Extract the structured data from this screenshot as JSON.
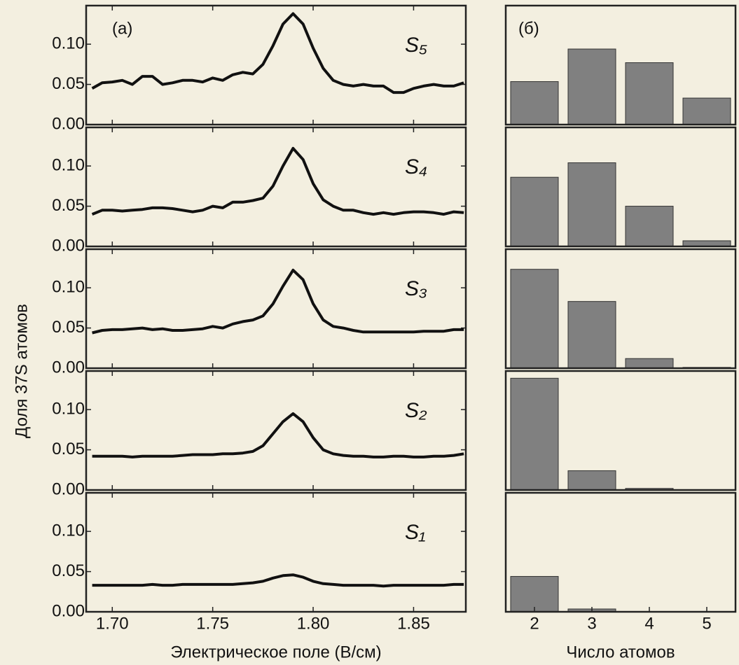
{
  "chart_data": [
    {
      "type": "line",
      "annotation": "(а)",
      "xlabel": "Электрическое поле (В/см)",
      "ylabel": "Доля 37S атомов",
      "x": [
        1.69,
        1.695,
        1.7,
        1.705,
        1.71,
        1.715,
        1.72,
        1.725,
        1.73,
        1.735,
        1.74,
        1.745,
        1.75,
        1.755,
        1.76,
        1.765,
        1.77,
        1.775,
        1.78,
        1.785,
        1.79,
        1.795,
        1.8,
        1.805,
        1.81,
        1.815,
        1.82,
        1.825,
        1.83,
        1.835,
        1.84,
        1.845,
        1.85,
        1.855,
        1.86,
        1.865,
        1.87,
        1.875
      ],
      "xlim": [
        1.687,
        1.876
      ],
      "xticks": [
        {
          "value": 1.7,
          "label": "1.70"
        },
        1.75,
        {
          "value": 1.8,
          "label": "1.80"
        },
        1.85
      ],
      "ylim": [
        0,
        0.148
      ],
      "yticks": [
        {
          "value": 0,
          "label": "0.00"
        },
        0.05,
        {
          "value": 0.1,
          "label": "0.10"
        }
      ],
      "color": "#111111",
      "series": [
        {
          "name": "S₅",
          "values": [
            0.045,
            0.052,
            0.053,
            0.055,
            0.05,
            0.06,
            0.06,
            0.05,
            0.052,
            0.055,
            0.055,
            0.053,
            0.058,
            0.055,
            0.062,
            0.065,
            0.063,
            0.075,
            0.098,
            0.125,
            0.138,
            0.125,
            0.095,
            0.07,
            0.055,
            0.05,
            0.048,
            0.05,
            0.048,
            0.048,
            0.04,
            0.04,
            0.045,
            0.048,
            0.05,
            0.048,
            0.048,
            0.052
          ]
        },
        {
          "name": "S₄",
          "values": [
            0.04,
            0.045,
            0.045,
            0.044,
            0.045,
            0.046,
            0.048,
            0.048,
            0.047,
            0.045,
            0.043,
            0.045,
            0.05,
            0.048,
            0.055,
            0.055,
            0.057,
            0.06,
            0.075,
            0.1,
            0.122,
            0.108,
            0.078,
            0.058,
            0.05,
            0.045,
            0.045,
            0.042,
            0.04,
            0.042,
            0.04,
            0.042,
            0.043,
            0.043,
            0.042,
            0.04,
            0.043,
            0.042
          ]
        },
        {
          "name": "S₃",
          "values": [
            0.044,
            0.047,
            0.048,
            0.048,
            0.049,
            0.05,
            0.048,
            0.049,
            0.047,
            0.047,
            0.048,
            0.049,
            0.052,
            0.05,
            0.055,
            0.058,
            0.06,
            0.065,
            0.08,
            0.102,
            0.122,
            0.11,
            0.08,
            0.06,
            0.052,
            0.05,
            0.047,
            0.045,
            0.045,
            0.045,
            0.045,
            0.045,
            0.045,
            0.046,
            0.046,
            0.046,
            0.048,
            0.048
          ]
        },
        {
          "name": "S₂",
          "values": [
            0.042,
            0.042,
            0.042,
            0.042,
            0.041,
            0.042,
            0.042,
            0.042,
            0.042,
            0.043,
            0.044,
            0.044,
            0.044,
            0.045,
            0.045,
            0.046,
            0.048,
            0.055,
            0.07,
            0.085,
            0.095,
            0.085,
            0.065,
            0.05,
            0.045,
            0.043,
            0.042,
            0.042,
            0.041,
            0.041,
            0.042,
            0.042,
            0.041,
            0.041,
            0.042,
            0.042,
            0.043,
            0.045
          ]
        },
        {
          "name": "S₁",
          "values": [
            0.033,
            0.033,
            0.033,
            0.033,
            0.033,
            0.033,
            0.034,
            0.033,
            0.033,
            0.034,
            0.034,
            0.034,
            0.034,
            0.034,
            0.034,
            0.035,
            0.036,
            0.038,
            0.042,
            0.045,
            0.046,
            0.043,
            0.038,
            0.035,
            0.034,
            0.033,
            0.033,
            0.033,
            0.033,
            0.032,
            0.033,
            0.033,
            0.033,
            0.033,
            0.033,
            0.033,
            0.034,
            0.034
          ]
        }
      ]
    },
    {
      "type": "bar",
      "annotation": "(б)",
      "xlabel": "Число атомов",
      "categories": [
        "2",
        "3",
        "4",
        "5"
      ],
      "ylim": [
        0,
        0.148
      ],
      "color": "#808080",
      "series": [
        {
          "values": [
            0.0535,
            0.094,
            0.077,
            0.033
          ]
        },
        {
          "values": [
            0.086,
            0.104,
            0.05,
            0.007
          ]
        },
        {
          "values": [
            0.123,
            0.083,
            0.012,
            0.001
          ]
        },
        {
          "values": [
            0.139,
            0.024,
            0.002,
            0
          ]
        },
        {
          "values": [
            0.044,
            0.0035,
            0,
            0
          ]
        }
      ]
    }
  ]
}
